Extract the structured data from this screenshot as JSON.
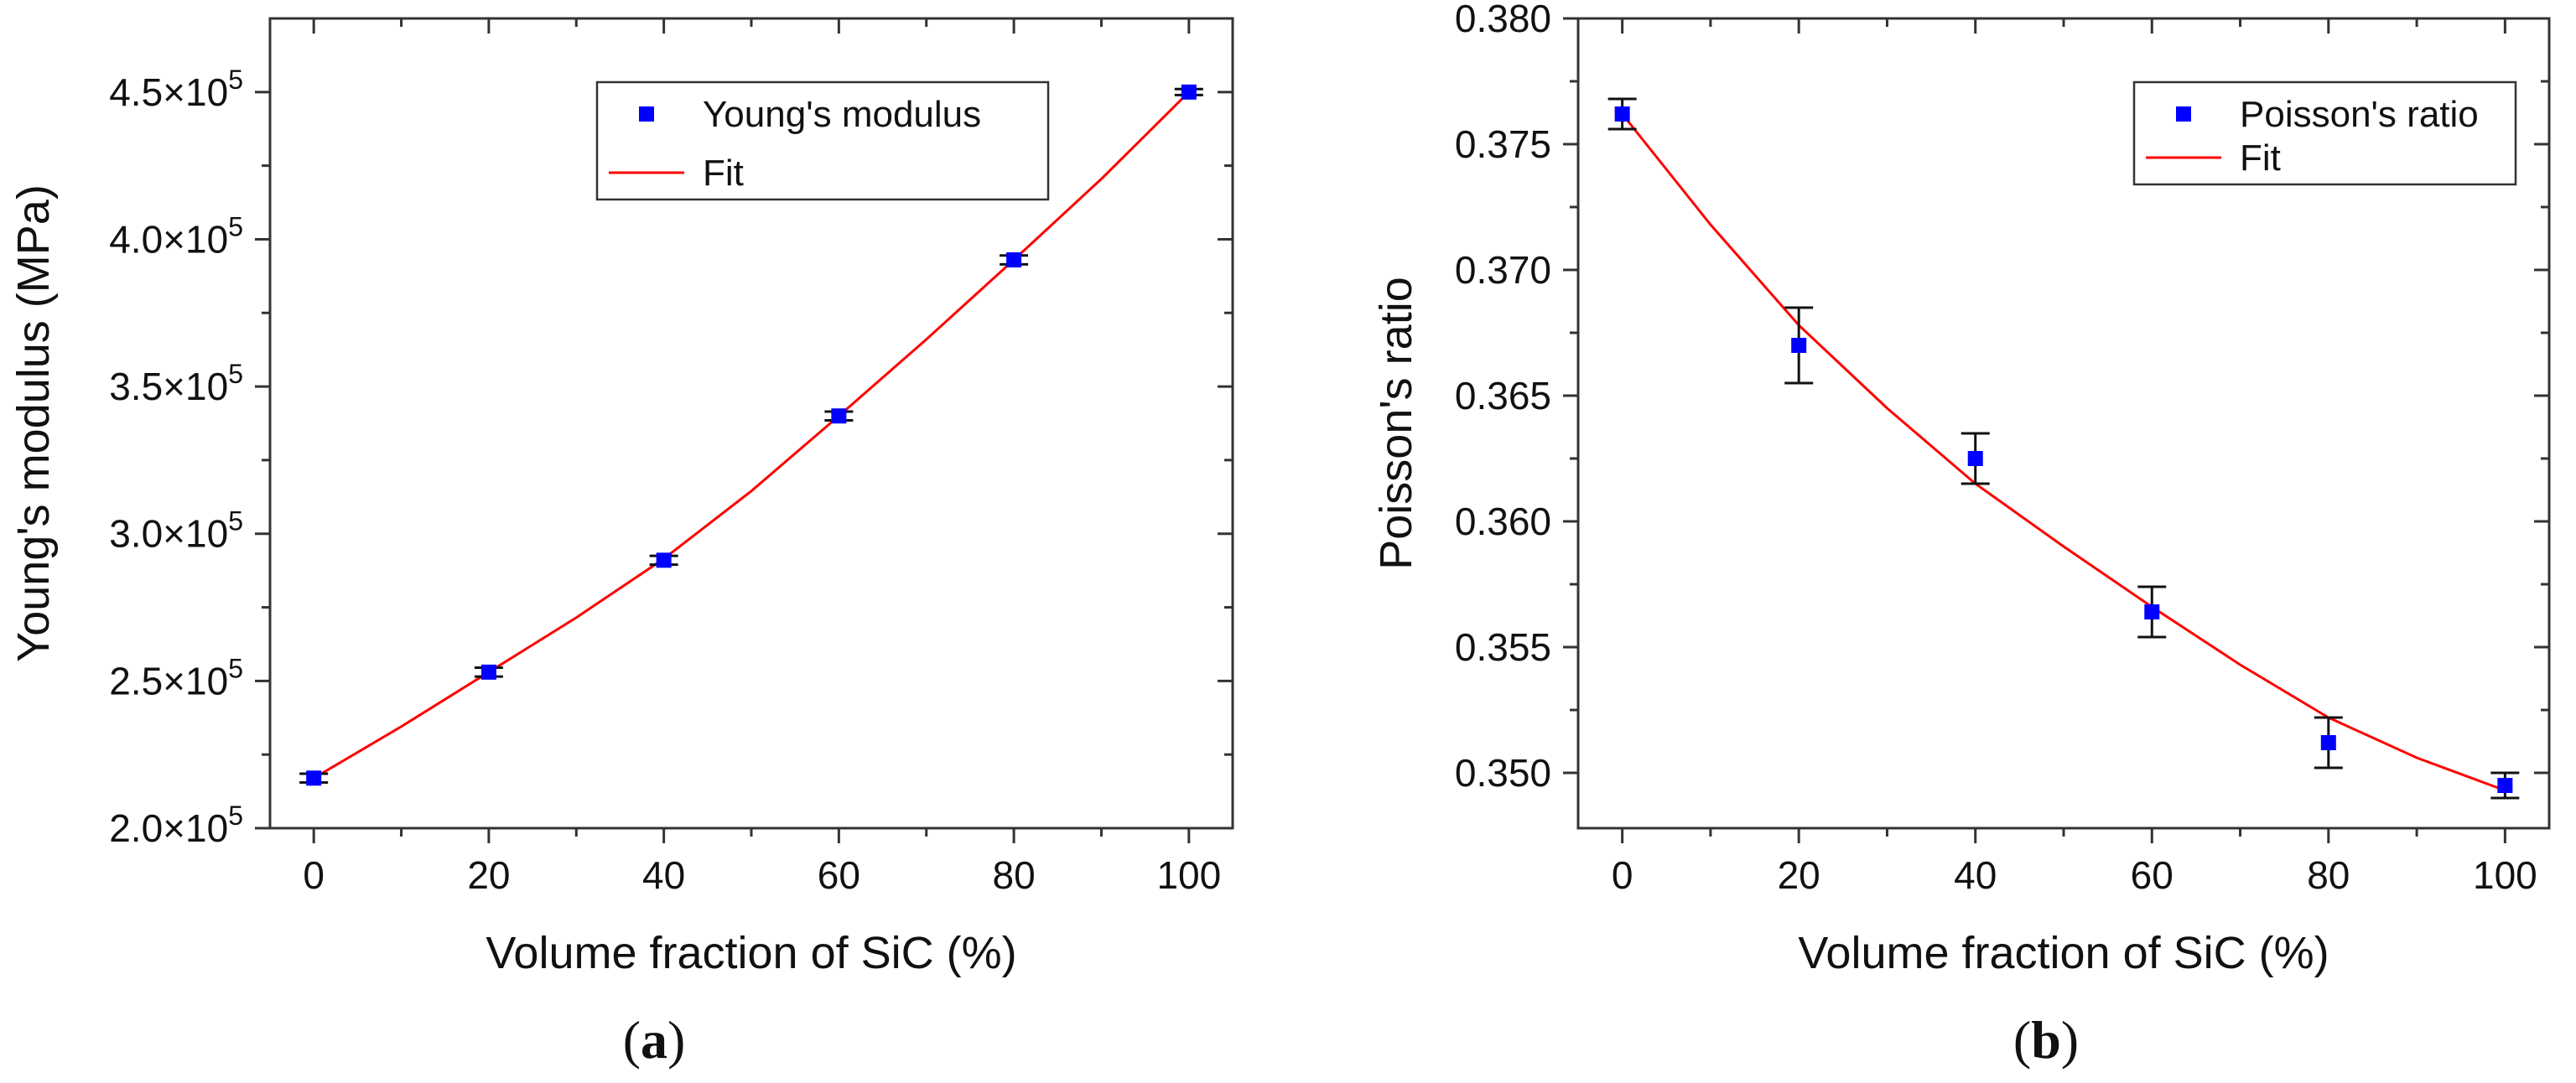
{
  "chart_data": [
    {
      "panel_label": "(a)",
      "type": "scatter",
      "xlabel": "Volume fraction of SiC (%)",
      "ylabel": "Young's modulus (MPa)",
      "xlim": [
        -5,
        105
      ],
      "ylim": [
        200000,
        475000
      ],
      "x_ticks": [
        0,
        20,
        40,
        60,
        80,
        100
      ],
      "x_tick_labels": [
        "0",
        "20",
        "40",
        "60",
        "80",
        "100"
      ],
      "y_ticks": [
        200000,
        250000,
        300000,
        350000,
        400000,
        450000
      ],
      "y_tick_labels": [
        {
          "mantissa": "2.0",
          "times": "×10",
          "exp": "5"
        },
        {
          "mantissa": "2.5",
          "times": "×10",
          "exp": "5"
        },
        {
          "mantissa": "3.0",
          "times": "×10",
          "exp": "5"
        },
        {
          "mantissa": "3.5",
          "times": "×10",
          "exp": "5"
        },
        {
          "mantissa": "4.0",
          "times": "×10",
          "exp": "5"
        },
        {
          "mantissa": "4.5",
          "times": "×10",
          "exp": "5"
        }
      ],
      "legend_position": "top-right",
      "series": [
        {
          "name": "Young's modulus",
          "kind": "points",
          "marker": "square",
          "color": "#0000ff",
          "x": [
            0,
            20,
            40,
            60,
            80,
            100
          ],
          "y": [
            217000,
            253000,
            291000,
            340000,
            393000,
            450000
          ],
          "err": [
            1500,
            1500,
            1500,
            1500,
            1500,
            1000
          ]
        },
        {
          "name": "Fit",
          "kind": "line",
          "color": "#ff0000",
          "x": [
            0,
            10,
            20,
            30,
            40,
            50,
            60,
            70,
            80,
            90,
            100
          ],
          "y": [
            217000,
            234500,
            253000,
            271500,
            291500,
            314500,
            340000,
            366000,
            393000,
            420500,
            450000
          ]
        }
      ]
    },
    {
      "panel_label": "(b)",
      "type": "scatter",
      "xlabel": "Volume fraction of SiC (%)",
      "ylabel": "Poisson's ratio",
      "xlim": [
        -5,
        105
      ],
      "ylim": [
        0.3478,
        0.38
      ],
      "x_ticks": [
        0,
        20,
        40,
        60,
        80,
        100
      ],
      "x_tick_labels": [
        "0",
        "20",
        "40",
        "60",
        "80",
        "100"
      ],
      "y_ticks": [
        0.35,
        0.355,
        0.36,
        0.365,
        0.37,
        0.375,
        0.38
      ],
      "y_tick_labels": [
        "0.350",
        "0.355",
        "0.360",
        "0.365",
        "0.370",
        "0.375",
        "0.380"
      ],
      "legend_position": "top-right",
      "series": [
        {
          "name": "Poisson's ratio",
          "kind": "points",
          "marker": "square",
          "color": "#0000ff",
          "x": [
            0,
            20,
            40,
            60,
            80,
            100
          ],
          "y": [
            0.3762,
            0.367,
            0.3625,
            0.3564,
            0.3512,
            0.3495
          ],
          "err": [
            0.0006,
            0.0015,
            0.001,
            0.001,
            0.001,
            0.0005
          ]
        },
        {
          "name": "Fit",
          "kind": "line",
          "color": "#ff0000",
          "x": [
            0,
            10,
            20,
            30,
            40,
            50,
            60,
            70,
            80,
            90,
            100
          ],
          "y": [
            0.3762,
            0.3718,
            0.3678,
            0.3645,
            0.3615,
            0.359,
            0.3566,
            0.3543,
            0.3522,
            0.3506,
            0.3493
          ]
        }
      ]
    }
  ]
}
